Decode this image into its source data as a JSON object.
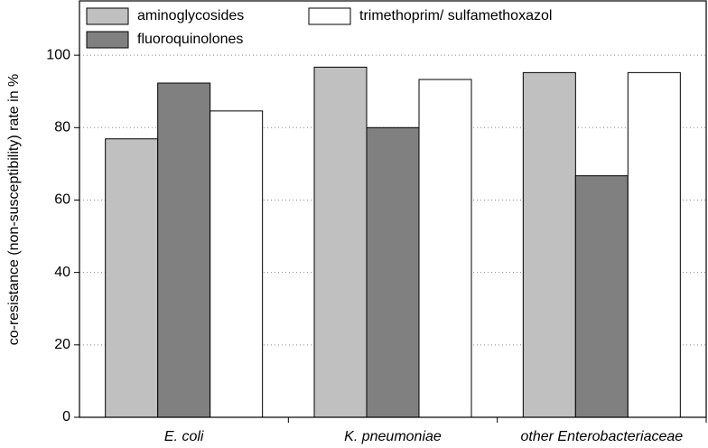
{
  "chart_data": {
    "type": "bar",
    "y_label": "co-resistance (non-susceptibility) rate in %",
    "categories": [
      "E. coli",
      "K. pneumoniae",
      "other Enterobacteriaceae"
    ],
    "series": [
      {
        "name": "aminoglycosides",
        "color": "#c0c0c0",
        "values": [
          76.9,
          96.7,
          95.2
        ]
      },
      {
        "name": "fluoroquinolones",
        "color": "#808080",
        "values": [
          92.3,
          80.0,
          66.7
        ]
      },
      {
        "name": "trimethoprim/ sulfamethoxazol",
        "color": "#ffffff",
        "values": [
          84.6,
          93.3,
          95.2
        ]
      }
    ],
    "ylim": [
      0,
      115
    ],
    "yticks": [
      0,
      20,
      40,
      60,
      80,
      100
    ],
    "grid": true,
    "legend": "upper left"
  }
}
